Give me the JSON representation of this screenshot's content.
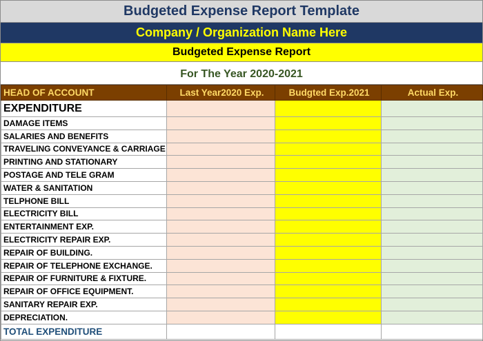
{
  "title": "Budgeted Expense Report Template",
  "company": "Company / Organization Name Here",
  "report_name": "Budgeted Expense Report",
  "year": "For The Year 2020-2021",
  "columns": {
    "head": "HEAD OF ACCOUNT",
    "last_year": "Last Year2020 Exp.",
    "budgeted": "Budgted Exp.2021",
    "actual": "Actual Exp."
  },
  "section": "EXPENDITURE",
  "items": [
    "DAMAGE ITEMS",
    "SALARIES AND BENEFITS",
    "TRAVELING CONVEYANCE & CARRIAGE",
    "PRINTING AND STATIONARY",
    "POSTAGE AND TELE GRAM",
    "WATER & SANITATION",
    "TELPHONE BILL",
    "ELECTRICITY BILL",
    "ENTERTAINMENT EXP.",
    "ELECTRICITY REPAIR EXP.",
    "REPAIR OF BUILDING.",
    "REPAIR OF TELEPHONE EXCHANGE.",
    "REPAIR OF FURNITURE & FIXTURE.",
    "REPAIR OF OFFICE EQUIPMENT.",
    "SANITARY REPAIR EXP.",
    "DEPRECIATION."
  ],
  "total_label": "TOTAL EXPENDITURE",
  "colors": {
    "title_bg": "#d9d9d9",
    "company_bg": "#1f3864",
    "highlight_yellow": "#ffff00",
    "header_bg": "#7b3f00",
    "last_year_fill": "#fce4d6",
    "actual_fill": "#e2efda"
  }
}
